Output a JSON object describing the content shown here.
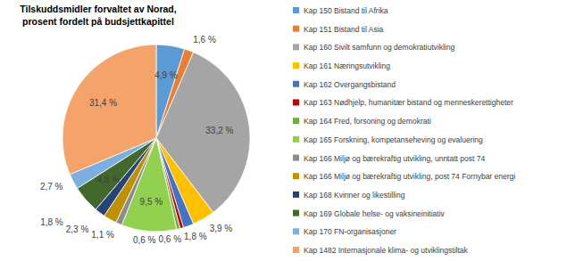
{
  "chart_data": {
    "type": "pie",
    "title": "Tilskuddsmidler forvaltet av Norad,\nprosent fordelt på budsjettkapittel",
    "categories": [
      "Kap 150 Bistand til Afrika",
      "Kap 151 Bistand til Asia",
      "Kap 160 Sivilt samfunn og demokratiutvikling",
      "Kap 161 Næringsutvikling",
      "Kap 162 Overgangsbistand",
      "Kap 163 Nødhjelp, humanitær bistand og menneskerettigheter",
      "Kap 164 Fred, forsoning og demokrati",
      "Kap 165 Forskning, kompetanseheving og evaluering",
      "Kap 166 Miljø og bærekraftig utvikling, unntatt post 74",
      "Kap 166 Miljø og bærekraftig utvikling, post 74 Fornybar energi",
      "Kap 168 Kvinner og likestilling",
      "Kap 169 Globale helse- og vaksineinitiativ",
      "Kap 170 FN-organisasjoner",
      "Kap 1482 Internasjonale klima- og utviklingstiltak"
    ],
    "values": [
      4.9,
      1.6,
      33.2,
      3.9,
      1.8,
      0.6,
      0.6,
      9.5,
      1.1,
      2.3,
      1.8,
      4.8,
      2.7,
      31.4
    ],
    "value_labels": [
      "4,9 %",
      "1,6 %",
      "33,2 %",
      "3,9 %",
      "1,8 %",
      "0,6 %",
      "0,6 %",
      "9,5 %",
      "1,1 %",
      "2,3 %",
      "1,8 %",
      "4,8 %",
      "2,7 %",
      "31,4 %"
    ],
    "colors": [
      "#5b9bd5",
      "#ed7d31",
      "#a5a5a5",
      "#ffc000",
      "#4472c4",
      "#c00000",
      "#70ad47",
      "#92d050",
      "#8c8c8c",
      "#bf9000",
      "#264478",
      "#43682b",
      "#7cafdd",
      "#f4a46a"
    ],
    "data_labels": true,
    "legend": "right"
  }
}
